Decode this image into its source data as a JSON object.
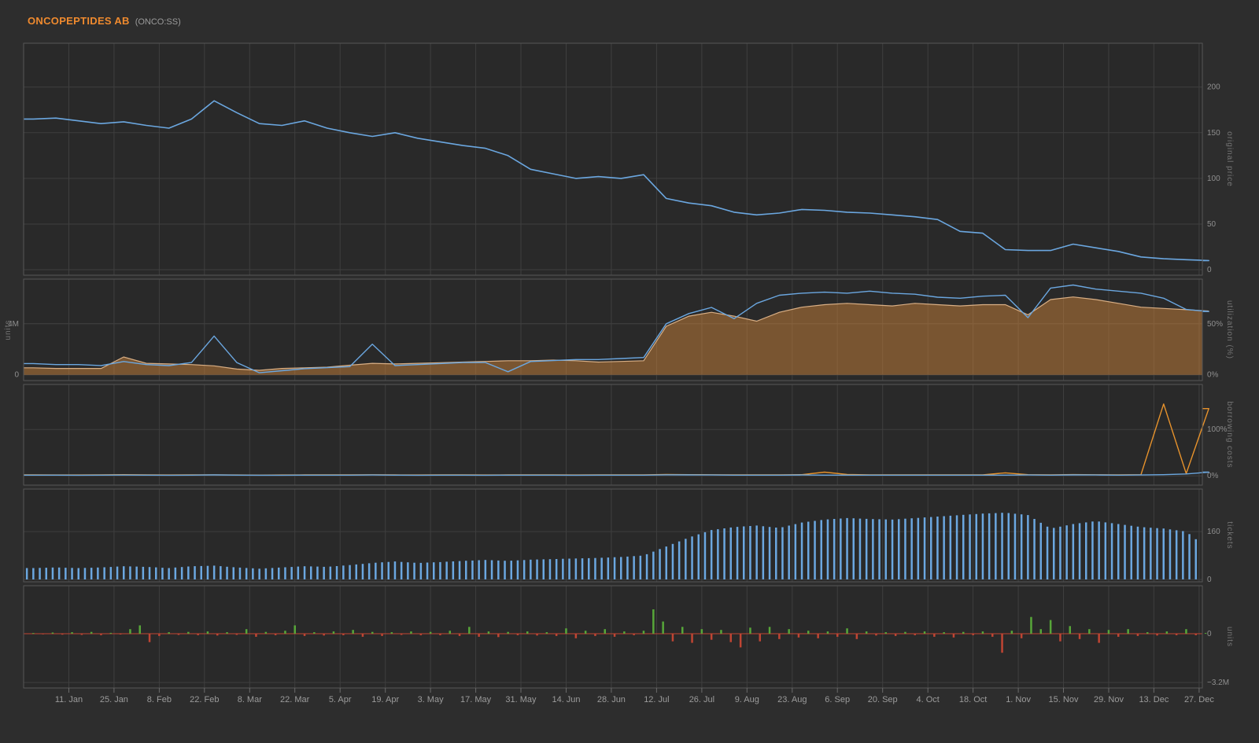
{
  "header": {
    "title": "ONCOPEPTIDES AB",
    "subtitle": "(ONCO:SS)"
  },
  "colors": {
    "accent": "#ef8a2e",
    "line_blue": "#6ba7e0",
    "area_orange": "#c9813a",
    "area_edge": "#d9af85",
    "orange_line": "#e8932c",
    "positive_green": "#57a639",
    "negative_red": "#c04533"
  },
  "x_axis": {
    "day_min": -3,
    "day_max": 362,
    "tick_days": [
      11,
      25,
      39,
      53,
      67,
      81,
      95,
      109,
      123,
      137,
      151,
      165,
      179,
      193,
      207,
      221,
      235,
      249,
      263,
      277,
      291,
      305,
      319,
      333,
      347,
      361
    ],
    "tick_labels": [
      "11. Jan",
      "25. Jan",
      "8. Feb",
      "22. Feb",
      "8. Mar",
      "22. Mar",
      "5. Apr",
      "19. Apr",
      "3. May",
      "17. May",
      "31. May",
      "14. Jun",
      "28. Jun",
      "12. Jul",
      "26. Jul",
      "9. Aug",
      "23. Aug",
      "6. Sep",
      "20. Sep",
      "4. Oct",
      "18. Oct",
      "1. Nov",
      "15. Nov",
      "29. Nov",
      "13. Dec",
      "27. Dec"
    ]
  },
  "chart_data": [
    {
      "id": "original-price",
      "type": "line",
      "axis_titles": {
        "right": "original price"
      },
      "ylim": [
        -6,
        248
      ],
      "yticks": [
        {
          "value": 0,
          "label": "0",
          "side": "right"
        },
        {
          "value": 50,
          "label": "50",
          "side": "right"
        },
        {
          "value": 100,
          "label": "100",
          "side": "right"
        },
        {
          "value": 150,
          "label": "150",
          "side": "right"
        },
        {
          "value": 200,
          "label": "200",
          "side": "right"
        }
      ],
      "x": {
        "start_day": 0,
        "step_days": 7
      },
      "series": [
        {
          "name": "price",
          "render": "line",
          "color": "#6ba7e0",
          "width": 1.6,
          "values": [
            165,
            166,
            163,
            160,
            162,
            158,
            155,
            165,
            185,
            172,
            160,
            158,
            163,
            155,
            150,
            146,
            150,
            144,
            140,
            136,
            133,
            125,
            110,
            105,
            100,
            102,
            100,
            104,
            78,
            73,
            70,
            63,
            60,
            62,
            66,
            65,
            63,
            62,
            60,
            58,
            55,
            42,
            40,
            22,
            21,
            21,
            28,
            24,
            20,
            14,
            12,
            11,
            10
          ]
        }
      ]
    },
    {
      "id": "on-loan",
      "type": "area",
      "axis_titles": {
        "left": "units",
        "right": "utilization (%)"
      },
      "ylim": [
        -0.45,
        7.5
      ],
      "ylim_right": [
        -5.6,
        93.75
      ],
      "yticks": [
        {
          "value": 4,
          "label": "4M",
          "side": "left"
        },
        {
          "value": 0,
          "label": "0",
          "side": "left"
        },
        {
          "value": 4,
          "label": "50%",
          "side": "right"
        },
        {
          "value": 0,
          "label": "0%",
          "side": "right"
        }
      ],
      "x": {
        "start_day": 0,
        "step_days": 7
      },
      "series": [
        {
          "name": "on-loan-quantity",
          "render": "area",
          "color": "#c9813a",
          "stroke": "#d9af85",
          "fill_opacity": 0.5,
          "values": [
            0.55,
            0.5,
            0.5,
            0.5,
            1.4,
            0.9,
            0.85,
            0.8,
            0.7,
            0.45,
            0.35,
            0.5,
            0.55,
            0.6,
            0.75,
            0.9,
            0.85,
            0.9,
            0.95,
            1.0,
            1.05,
            1.1,
            1.1,
            1.15,
            1.1,
            1.0,
            1.05,
            1.1,
            3.8,
            4.6,
            4.9,
            4.6,
            4.2,
            4.9,
            5.3,
            5.5,
            5.6,
            5.5,
            5.4,
            5.6,
            5.5,
            5.4,
            5.5,
            5.5,
            4.7,
            5.9,
            6.1,
            5.9,
            5.6,
            5.3,
            5.2,
            5.1,
            5.0
          ]
        },
        {
          "name": "utilization",
          "render": "line",
          "color": "#6ba7e0",
          "width": 1.4,
          "scale": "right",
          "values": [
            11,
            10,
            10,
            9,
            13,
            10,
            9,
            12,
            38,
            12,
            2,
            4,
            6,
            7,
            8,
            30,
            9,
            10,
            11,
            12,
            12,
            3,
            13,
            14,
            15,
            15,
            16,
            17,
            50,
            60,
            66,
            55,
            70,
            78,
            80,
            81,
            80,
            82,
            80,
            79,
            76,
            75,
            77,
            78,
            56,
            85,
            88,
            84,
            82,
            80,
            75,
            64,
            62
          ]
        }
      ]
    },
    {
      "id": "borrowing-costs",
      "type": "line",
      "axis_titles": {
        "right": "borrowing costs"
      },
      "ylim": [
        -20,
        197
      ],
      "yticks": [
        {
          "value": 100,
          "label": "100%",
          "side": "right"
        },
        {
          "value": 0,
          "label": "0%",
          "side": "right"
        }
      ],
      "x": {
        "start_day": 0,
        "step_days": 7
      },
      "series": [
        {
          "name": "benchmark-fee",
          "render": "line",
          "color": "#e8932c",
          "width": 1.4,
          "values": [
            2.0,
            1.8,
            1.9,
            2.0,
            2.5,
            2.0,
            1.8,
            2.0,
            2.2,
            1.8,
            1.6,
            1.8,
            2.0,
            2.2,
            2.0,
            2.4,
            2.0,
            1.8,
            2.0,
            2.0,
            1.9,
            2.0,
            2.1,
            2.0,
            1.9,
            2.0,
            2.0,
            2.2,
            3.0,
            2.6,
            2.4,
            2.2,
            2.0,
            2.2,
            2.5,
            8.0,
            3.0,
            2.2,
            2.0,
            2.2,
            2.0,
            2.2,
            2.0,
            6.5,
            2.5,
            2.2,
            2.8,
            2.4,
            2.2,
            2.5,
            155,
            5,
            145
          ]
        },
        {
          "name": "fee",
          "render": "line",
          "color": "#6ba7e0",
          "width": 1.4,
          "values": [
            1.5,
            1.6,
            1.4,
            1.5,
            1.7,
            1.5,
            1.4,
            1.6,
            2.0,
            1.5,
            1.3,
            1.4,
            1.5,
            1.6,
            1.5,
            1.8,
            1.5,
            1.4,
            1.6,
            1.5,
            1.4,
            1.5,
            1.6,
            1.5,
            1.4,
            1.5,
            1.6,
            1.5,
            2.2,
            2.0,
            1.8,
            1.6,
            1.5,
            1.6,
            1.8,
            1.6,
            1.5,
            1.6,
            1.5,
            1.6,
            1.5,
            1.6,
            1.5,
            1.6,
            1.8,
            1.6,
            2.0,
            1.8,
            1.6,
            1.8,
            2.5,
            4.0,
            8.0
          ]
        }
      ]
    },
    {
      "id": "tickets",
      "type": "bar",
      "axis_titles": {
        "right": "tickets"
      },
      "ylim": [
        -8,
        302
      ],
      "yticks": [
        {
          "value": 160,
          "label": "160",
          "side": "right"
        },
        {
          "value": 0,
          "label": "0",
          "side": "right"
        }
      ],
      "x": {
        "start_day": 0,
        "step_days": 7
      },
      "series": [
        {
          "name": "tickets",
          "render": "dense-bars",
          "color": "#6ba7e0",
          "values": [
            38,
            40,
            38,
            40,
            44,
            42,
            38,
            44,
            46,
            40,
            36,
            40,
            44,
            42,
            48,
            55,
            60,
            55,
            58,
            62,
            65,
            62,
            66,
            68,
            70,
            72,
            75,
            80,
            110,
            140,
            165,
            175,
            180,
            172,
            190,
            200,
            205,
            202,
            200,
            205,
            210,
            215,
            220,
            223,
            215,
            170,
            185,
            195,
            185,
            175,
            170,
            160,
            100
          ]
        }
      ]
    },
    {
      "id": "net-units",
      "type": "bar",
      "axis_titles": {
        "right": "units"
      },
      "ylim": [
        -3.56,
        3.15
      ],
      "yticks": [
        {
          "value": 0,
          "label": "0",
          "side": "right"
        },
        {
          "value": -3.2,
          "label": "−3.2M",
          "side": "right"
        }
      ],
      "x": {
        "start_day": 0,
        "step_days": 3
      },
      "series": [
        {
          "name": "net-change",
          "render": "posneg-bars",
          "color_positive": "#57a639",
          "color_negative": "#c04533",
          "values": [
            0.05,
            -0.04,
            0.08,
            -0.06,
            0.1,
            -0.08,
            0.12,
            -0.1,
            0.06,
            -0.05,
            0.3,
            0.55,
            -0.55,
            -0.15,
            0.1,
            -0.08,
            0.12,
            -0.1,
            0.15,
            -0.12,
            0.1,
            -0.08,
            0.3,
            -0.2,
            0.12,
            -0.1,
            0.2,
            0.55,
            -0.15,
            0.1,
            -0.12,
            0.15,
            -0.1,
            0.25,
            -0.2,
            0.12,
            -0.15,
            0.1,
            -0.08,
            0.15,
            -0.1,
            0.12,
            -0.1,
            0.2,
            -0.15,
            0.45,
            -0.2,
            0.15,
            -0.22,
            0.12,
            -0.1,
            0.15,
            -0.12,
            0.1,
            -0.15,
            0.35,
            -0.3,
            0.2,
            -0.15,
            0.3,
            -0.2,
            0.15,
            -0.1,
            0.2,
            1.6,
            0.8,
            -0.5,
            0.45,
            -0.6,
            0.3,
            -0.4,
            0.25,
            -0.55,
            -0.9,
            0.4,
            -0.5,
            0.45,
            -0.35,
            0.3,
            -0.25,
            0.2,
            -0.3,
            0.15,
            -0.2,
            0.35,
            -0.35,
            0.15,
            -0.12,
            0.1,
            -0.15,
            0.12,
            -0.1,
            0.15,
            -0.2,
            0.1,
            -0.25,
            0.12,
            -0.1,
            0.15,
            -0.2,
            -1.25,
            0.2,
            -0.3,
            1.1,
            0.3,
            0.9,
            -0.5,
            0.5,
            -0.35,
            0.3,
            -0.6,
            0.25,
            -0.2,
            0.3,
            -0.15,
            0.1,
            -0.12,
            0.15,
            -0.1,
            0.3,
            -0.1,
            0.05
          ]
        }
      ]
    }
  ]
}
